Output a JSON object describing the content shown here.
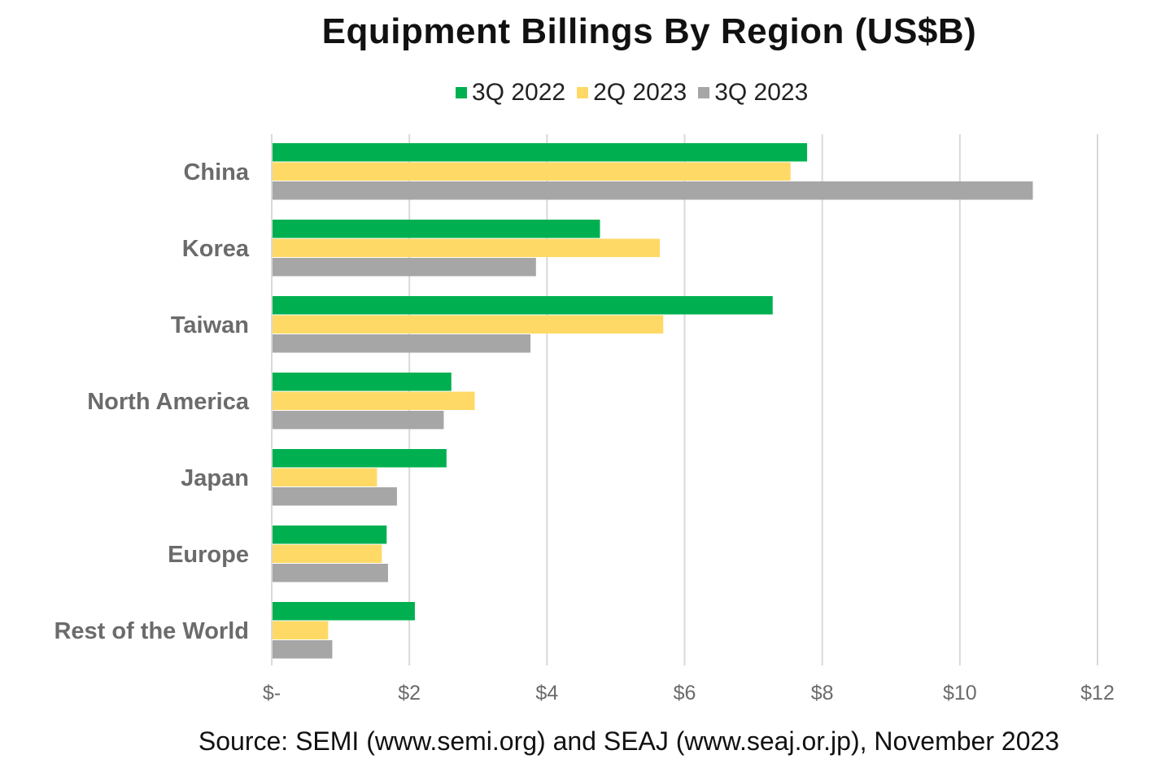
{
  "chart_data": {
    "type": "bar",
    "orientation": "horizontal",
    "title": "Equipment Billings By Region (US$B)",
    "categories": [
      "China",
      "Korea",
      "Taiwan",
      "North America",
      "Japan",
      "Europe",
      "Rest of the World"
    ],
    "series": [
      {
        "name": "3Q 2022",
        "color": "#00B050",
        "values": [
          7.78,
          4.77,
          7.28,
          2.61,
          2.54,
          1.67,
          2.08
        ]
      },
      {
        "name": "2Q 2023",
        "color": "#FFD966",
        "values": [
          7.54,
          5.64,
          5.69,
          2.95,
          1.53,
          1.6,
          0.82
        ]
      },
      {
        "name": "3Q 2023",
        "color": "#A6A6A6",
        "values": [
          11.06,
          3.84,
          3.76,
          2.5,
          1.82,
          1.69,
          0.88
        ]
      }
    ],
    "xlim": [
      0,
      12
    ],
    "xticks": [
      0,
      2,
      4,
      6,
      8,
      10,
      12
    ],
    "xtick_labels": [
      "$-",
      "$2",
      "$4",
      "$6",
      "$8",
      "$10",
      "$12"
    ],
    "grid": "vertical",
    "legend_position": "top-center"
  },
  "source": "Source: SEMI (www.semi.org) and SEAJ (www.seaj.or.jp), November 2023"
}
